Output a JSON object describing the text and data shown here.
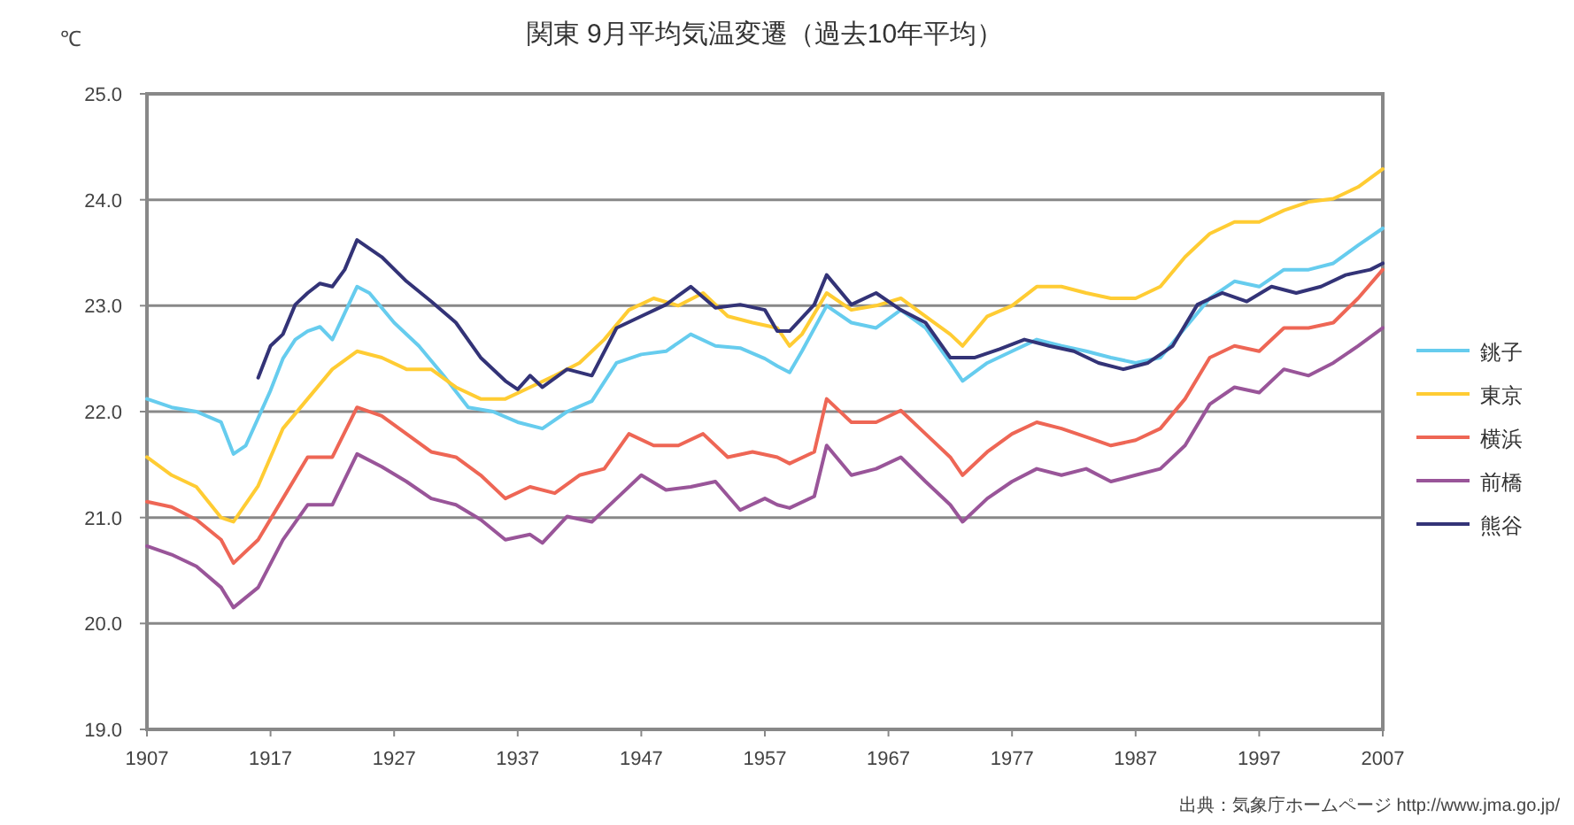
{
  "chart_data": {
    "type": "line",
    "title": "関東 9月平均気温変遷（過去10年平均）",
    "ylabel": "℃",
    "annotations": [
      "出典：気象庁ホームページ http://www.jma.go.jp/"
    ],
    "xlim": [
      1907,
      2007
    ],
    "xticks": [
      1907,
      1917,
      1927,
      1937,
      1947,
      1957,
      1967,
      1977,
      1987,
      1997,
      2007
    ],
    "ylim": [
      19,
      25
    ],
    "yticks": [
      {
        "value": 19,
        "label": "19.0"
      },
      {
        "value": 20,
        "label": "20.0"
      },
      {
        "value": 21,
        "label": "21.0"
      },
      {
        "value": 22,
        "label": "22.0"
      },
      {
        "value": 23,
        "label": "23.0"
      },
      {
        "value": 24,
        "label": "24.0"
      },
      {
        "value": 25,
        "label": "25.0"
      }
    ],
    "grid": "y",
    "legend": "right",
    "marker": "none",
    "line_style": "solid",
    "series": [
      {
        "name": "銚子",
        "color": "#66ccee",
        "x": [
          1907,
          1909,
          1911,
          1913,
          1914,
          1915,
          1917,
          1918,
          1919,
          1920,
          1921,
          1922,
          1924,
          1925,
          1927,
          1929,
          1931,
          1933,
          1935,
          1937,
          1939,
          1941,
          1943,
          1945,
          1947,
          1949,
          1951,
          1953,
          1955,
          1957,
          1958,
          1959,
          1960,
          1962,
          1964,
          1966,
          1968,
          1970,
          1972,
          1973,
          1975,
          1977,
          1979,
          1981,
          1983,
          1985,
          1987,
          1989,
          1991,
          1993,
          1995,
          1997,
          1999,
          2001,
          2003,
          2005,
          2007
        ],
        "values": [
          22.12,
          22.04,
          22.0,
          21.9,
          21.6,
          21.68,
          22.2,
          22.5,
          22.68,
          22.76,
          22.8,
          22.68,
          23.18,
          23.12,
          22.84,
          22.62,
          22.34,
          22.04,
          22.0,
          21.9,
          21.84,
          22.0,
          22.1,
          22.46,
          22.54,
          22.57,
          22.73,
          22.62,
          22.6,
          22.5,
          22.43,
          22.37,
          22.57,
          23.0,
          22.84,
          22.79,
          22.96,
          22.79,
          22.46,
          22.29,
          22.46,
          22.57,
          22.68,
          22.62,
          22.57,
          22.51,
          22.46,
          22.51,
          22.79,
          23.07,
          23.23,
          23.18,
          23.34,
          23.34,
          23.4,
          23.57,
          23.73
        ]
      },
      {
        "name": "東京",
        "color": "#ffcc33",
        "x": [
          1907,
          1909,
          1911,
          1913,
          1914,
          1916,
          1918,
          1920,
          1922,
          1924,
          1926,
          1928,
          1930,
          1932,
          1934,
          1936,
          1938,
          1940,
          1942,
          1944,
          1946,
          1948,
          1950,
          1952,
          1954,
          1956,
          1958,
          1959,
          1960,
          1962,
          1964,
          1966,
          1968,
          1970,
          1972,
          1973,
          1975,
          1977,
          1979,
          1981,
          1983,
          1985,
          1987,
          1989,
          1991,
          1993,
          1995,
          1997,
          1999,
          2001,
          2003,
          2005,
          2007
        ],
        "values": [
          21.57,
          21.4,
          21.29,
          21.0,
          20.96,
          21.3,
          21.84,
          22.12,
          22.4,
          22.57,
          22.51,
          22.4,
          22.4,
          22.23,
          22.12,
          22.12,
          22.23,
          22.34,
          22.46,
          22.68,
          22.96,
          23.07,
          23.0,
          23.12,
          22.9,
          22.84,
          22.79,
          22.62,
          22.73,
          23.12,
          22.96,
          23.0,
          23.07,
          22.9,
          22.73,
          22.62,
          22.9,
          23.0,
          23.18,
          23.18,
          23.12,
          23.07,
          23.07,
          23.18,
          23.46,
          23.68,
          23.79,
          23.79,
          23.9,
          23.98,
          24.01,
          24.12,
          24.29
        ]
      },
      {
        "name": "横浜",
        "color": "#ee6655",
        "x": [
          1907,
          1909,
          1911,
          1913,
          1914,
          1916,
          1918,
          1920,
          1922,
          1924,
          1926,
          1928,
          1930,
          1932,
          1934,
          1936,
          1938,
          1940,
          1942,
          1944,
          1946,
          1948,
          1950,
          1952,
          1954,
          1956,
          1958,
          1959,
          1961,
          1962,
          1964,
          1966,
          1968,
          1970,
          1972,
          1973,
          1975,
          1977,
          1979,
          1981,
          1983,
          1985,
          1987,
          1989,
          1991,
          1993,
          1995,
          1997,
          1999,
          2001,
          2003,
          2005,
          2007
        ],
        "values": [
          21.15,
          21.1,
          20.98,
          20.79,
          20.57,
          20.79,
          21.18,
          21.57,
          21.57,
          22.04,
          21.96,
          21.79,
          21.62,
          21.57,
          21.4,
          21.18,
          21.29,
          21.23,
          21.4,
          21.46,
          21.79,
          21.68,
          21.68,
          21.79,
          21.57,
          21.62,
          21.57,
          21.51,
          21.62,
          22.12,
          21.9,
          21.9,
          22.01,
          21.79,
          21.57,
          21.4,
          21.62,
          21.79,
          21.9,
          21.84,
          21.76,
          21.68,
          21.73,
          21.84,
          22.12,
          22.51,
          22.62,
          22.57,
          22.79,
          22.79,
          22.84,
          23.07,
          23.34
        ]
      },
      {
        "name": "前橋",
        "color": "#995599",
        "x": [
          1907,
          1909,
          1911,
          1913,
          1914,
          1916,
          1918,
          1920,
          1922,
          1924,
          1926,
          1928,
          1930,
          1932,
          1934,
          1936,
          1938,
          1939,
          1941,
          1943,
          1945,
          1947,
          1949,
          1951,
          1953,
          1955,
          1957,
          1958,
          1959,
          1961,
          1962,
          1964,
          1966,
          1968,
          1970,
          1972,
          1973,
          1975,
          1977,
          1979,
          1981,
          1983,
          1985,
          1987,
          1989,
          1991,
          1993,
          1995,
          1997,
          1999,
          2001,
          2003,
          2005,
          2007
        ],
        "values": [
          20.73,
          20.65,
          20.54,
          20.34,
          20.15,
          20.34,
          20.79,
          21.12,
          21.12,
          21.6,
          21.48,
          21.34,
          21.18,
          21.12,
          20.98,
          20.79,
          20.84,
          20.76,
          21.01,
          20.96,
          21.18,
          21.4,
          21.26,
          21.29,
          21.34,
          21.07,
          21.18,
          21.12,
          21.09,
          21.2,
          21.68,
          21.4,
          21.46,
          21.57,
          21.34,
          21.12,
          20.96,
          21.18,
          21.34,
          21.46,
          21.4,
          21.46,
          21.34,
          21.4,
          21.46,
          21.68,
          22.07,
          22.23,
          22.18,
          22.4,
          22.34,
          22.46,
          22.62,
          22.79
        ]
      },
      {
        "name": "熊谷",
        "color": "#333377",
        "x": [
          1916,
          1917,
          1918,
          1919,
          1920,
          1921,
          1922,
          1923,
          1924,
          1926,
          1928,
          1930,
          1932,
          1934,
          1936,
          1937,
          1938,
          1939,
          1941,
          1943,
          1945,
          1947,
          1949,
          1951,
          1953,
          1955,
          1957,
          1958,
          1959,
          1961,
          1962,
          1964,
          1966,
          1968,
          1970,
          1972,
          1974,
          1976,
          1978,
          1980,
          1982,
          1984,
          1986,
          1988,
          1990,
          1992,
          1994,
          1996,
          1998,
          2000,
          2002,
          2004,
          2006,
          2007
        ],
        "values": [
          22.32,
          22.62,
          22.73,
          23.01,
          23.12,
          23.21,
          23.18,
          23.34,
          23.62,
          23.46,
          23.23,
          23.04,
          22.84,
          22.51,
          22.29,
          22.21,
          22.34,
          22.23,
          22.4,
          22.34,
          22.79,
          22.9,
          23.01,
          23.18,
          22.98,
          23.01,
          22.96,
          22.76,
          22.76,
          23.01,
          23.29,
          23.01,
          23.12,
          22.96,
          22.84,
          22.51,
          22.51,
          22.59,
          22.68,
          22.62,
          22.57,
          22.46,
          22.4,
          22.46,
          22.62,
          23.01,
          23.12,
          23.04,
          23.18,
          23.12,
          23.18,
          23.29,
          23.34,
          23.4
        ]
      }
    ]
  }
}
